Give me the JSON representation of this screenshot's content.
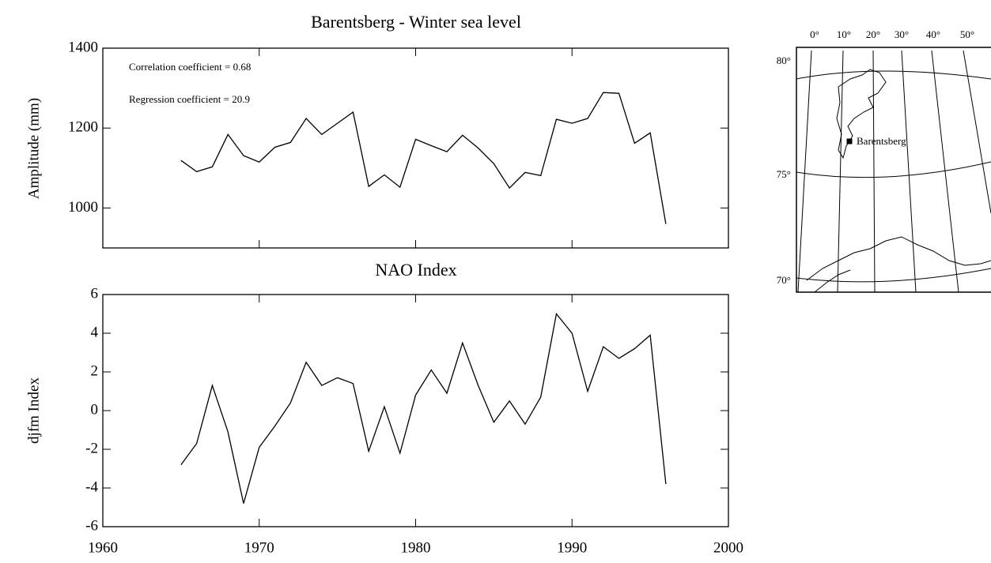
{
  "chart_data": [
    {
      "type": "line",
      "title": "Barentsberg - Winter sea level",
      "ylabel": "Amplitude (mm)",
      "annotations": [
        "Correlation coefficient = 0.68",
        "Regression coefficient = 20.9"
      ],
      "x": [
        1965,
        1966,
        1967,
        1968,
        1969,
        1970,
        1971,
        1972,
        1973,
        1974,
        1975,
        1976,
        1977,
        1978,
        1979,
        1980,
        1981,
        1982,
        1983,
        1984,
        1985,
        1986,
        1987,
        1988,
        1989,
        1990,
        1991,
        1992,
        1993,
        1994,
        1995,
        1996
      ],
      "values": [
        1119,
        1091,
        1103,
        1184,
        1131,
        1115,
        1152,
        1164,
        1224,
        1184,
        1212,
        1240,
        1054,
        1083,
        1052,
        1172,
        1156,
        1141,
        1182,
        1150,
        1111,
        1050,
        1089,
        1081,
        1222,
        1212,
        1224,
        1289,
        1287,
        1162,
        1188,
        960
      ],
      "color": "#000000",
      "xlim": [
        1960,
        2000
      ],
      "ylim": [
        900,
        1400
      ],
      "yticks": [
        1000,
        1200,
        1400
      ]
    },
    {
      "type": "line",
      "title": "NAO Index",
      "ylabel": "djfm Index",
      "x": [
        1965,
        1966,
        1967,
        1968,
        1969,
        1970,
        1971,
        1972,
        1973,
        1974,
        1975,
        1976,
        1977,
        1978,
        1979,
        1980,
        1981,
        1982,
        1983,
        1984,
        1985,
        1986,
        1987,
        1988,
        1989,
        1990,
        1991,
        1992,
        1993,
        1994,
        1995,
        1996
      ],
      "values": [
        -2.8,
        -1.7,
        1.3,
        -1.1,
        -4.8,
        -1.9,
        -0.8,
        0.4,
        2.5,
        1.3,
        1.7,
        1.4,
        -2.1,
        0.2,
        -2.2,
        0.8,
        2.1,
        0.9,
        3.5,
        1.3,
        -0.6,
        0.5,
        -0.7,
        0.7,
        5.0,
        4.0,
        1.0,
        3.3,
        2.7,
        3.2,
        3.9,
        -3.8
      ],
      "color": "#000000",
      "xlim": [
        1960,
        2000
      ],
      "ylim": [
        -6,
        6
      ],
      "yticks": [
        -6,
        -4,
        -2,
        0,
        2,
        4,
        6
      ],
      "xticks": [
        1960,
        1970,
        1980,
        1990,
        2000
      ]
    }
  ],
  "map": {
    "longitudes": [
      "0°",
      "10°",
      "20°",
      "30°",
      "40°",
      "50°"
    ],
    "latitudes": [
      "80°",
      "75°",
      "70°"
    ],
    "place": "Barentsberg"
  }
}
